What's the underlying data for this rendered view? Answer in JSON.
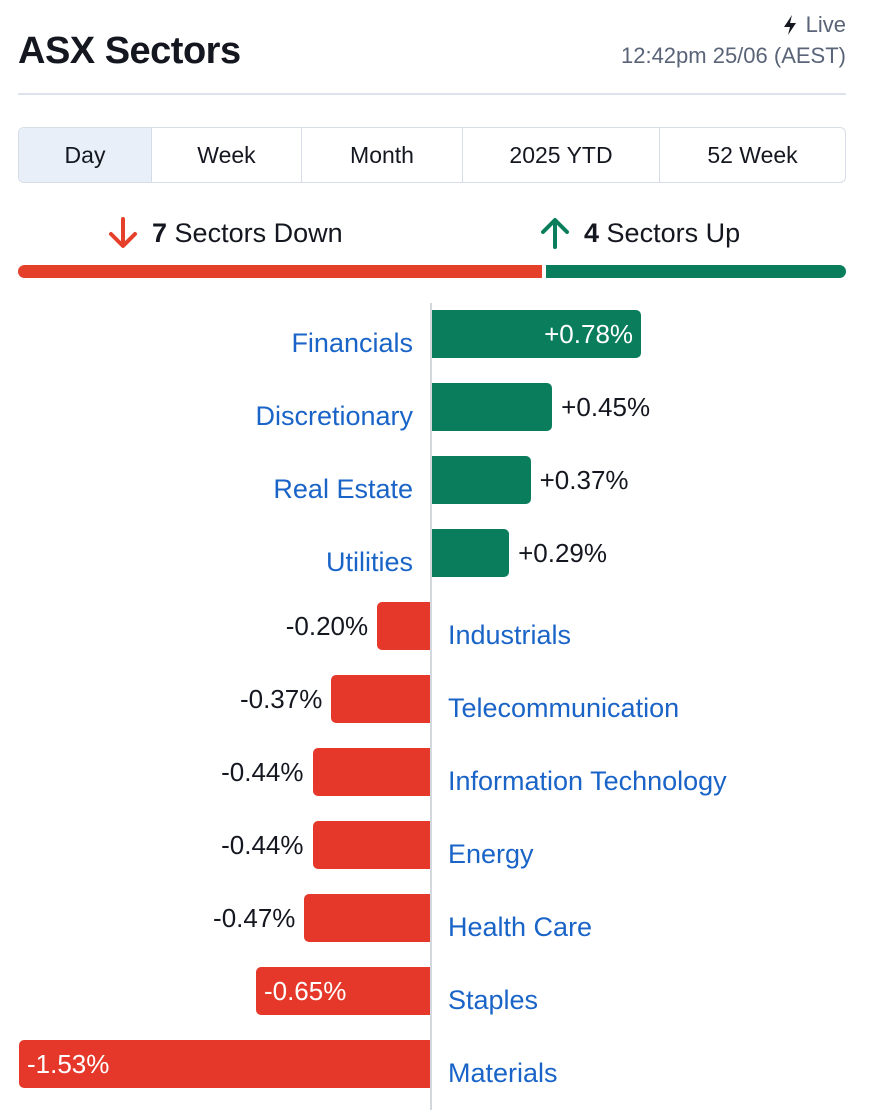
{
  "header": {
    "title": "ASX Sectors",
    "live_label": "Live",
    "timestamp": "12:42pm 25/06 (AEST)"
  },
  "tabs": [
    {
      "label": "Day",
      "active": true
    },
    {
      "label": "Week",
      "active": false
    },
    {
      "label": "Month",
      "active": false
    },
    {
      "label": "2025 YTD",
      "active": false
    },
    {
      "label": "52 Week",
      "active": false
    }
  ],
  "summary": {
    "down_count": "7",
    "down_label": "Sectors Down",
    "up_count": "4",
    "up_label": "Sectors Up",
    "down_share": 0.636,
    "up_share": 0.364
  },
  "colors": {
    "up": "#0a7e5c",
    "down": "#e5382a",
    "link": "#1a64c8"
  },
  "icons": {
    "live": "lightning-icon",
    "down": "arrow-down-icon",
    "up": "arrow-up-icon"
  },
  "chart_data": {
    "type": "bar",
    "orientation": "horizontal",
    "categories": [
      "Financials",
      "Discretionary",
      "Real Estate",
      "Utilities",
      "Industrials",
      "Telecommunication",
      "Information Technology",
      "Energy",
      "Health Care",
      "Staples",
      "Materials"
    ],
    "values": [
      0.78,
      0.45,
      0.37,
      0.29,
      -0.2,
      -0.37,
      -0.44,
      -0.44,
      -0.47,
      -0.65,
      -1.53
    ],
    "labels": [
      "+0.78%",
      "+0.45%",
      "+0.37%",
      "+0.29%",
      "-0.20%",
      "-0.37%",
      "-0.44%",
      "-0.44%",
      "-0.47%",
      "-0.65%",
      "-1.53%"
    ],
    "unit": "%"
  }
}
